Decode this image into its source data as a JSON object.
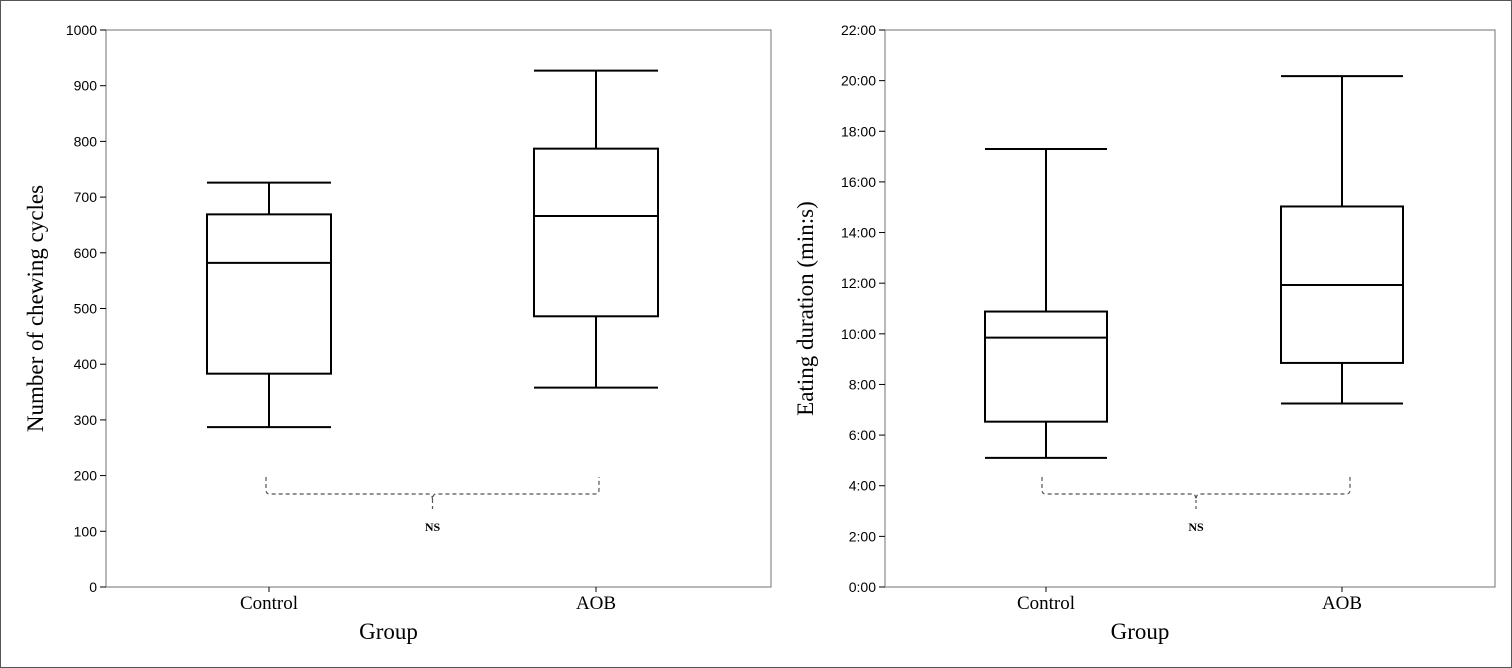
{
  "chart_data": [
    {
      "type": "boxplot",
      "xlabel": "Group",
      "ylabel": "Number of chewing cycles",
      "ylim": [
        0,
        1000
      ],
      "yticks": [
        0,
        100,
        200,
        300,
        400,
        500,
        600,
        700,
        800,
        900,
        1000
      ],
      "ytick_labels": [
        "0",
        "100",
        "200",
        "300",
        "400",
        "500",
        "600",
        "700",
        "800",
        "900",
        "1000"
      ],
      "categories": [
        "Control",
        "AOB"
      ],
      "boxes": [
        {
          "min": 287,
          "q1": 383,
          "median": 582,
          "q3": 669,
          "max": 726
        },
        {
          "min": 358,
          "q1": 486,
          "median": 666,
          "q3": 787,
          "max": 927
        }
      ],
      "annotation": "NS"
    },
    {
      "type": "boxplot",
      "xlabel": "Group",
      "ylabel": "Eating duration (min:s)",
      "ylim": [
        0,
        22
      ],
      "yticks": [
        0,
        2,
        4,
        6,
        8,
        10,
        12,
        14,
        16,
        18,
        20,
        22
      ],
      "ytick_labels": [
        "0:00",
        "2:00",
        "4:00",
        "6:00",
        "8:00",
        "10:00",
        "12:00",
        "14:00",
        "16:00",
        "18:00",
        "20:00",
        "22:00"
      ],
      "categories": [
        "Control",
        "AOB"
      ],
      "boxes": [
        {
          "min": 5.1,
          "q1": 6.53,
          "median": 9.85,
          "q3": 10.88,
          "max": 17.3
        },
        {
          "min": 7.25,
          "q1": 8.85,
          "median": 11.93,
          "q3": 15.03,
          "max": 20.18
        }
      ],
      "annotation": "NS"
    }
  ]
}
